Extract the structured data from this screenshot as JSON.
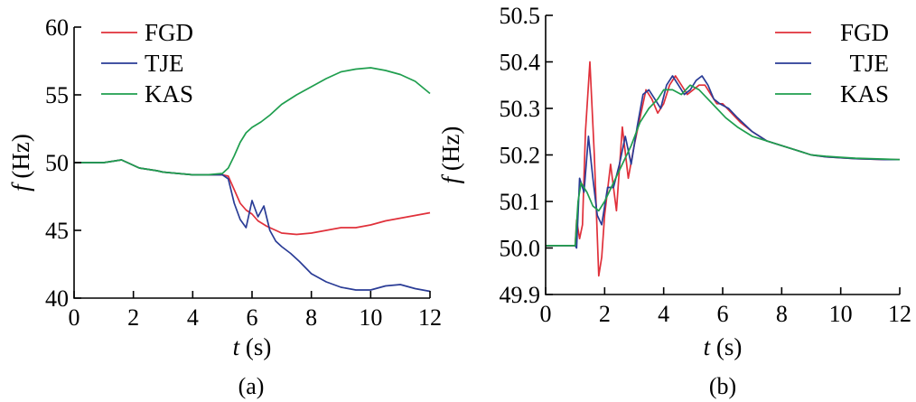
{
  "chart_data": [
    {
      "type": "line",
      "panel_label": "(a)",
      "xlabel_var": "t",
      "xlabel_unit": " (s)",
      "ylabel_var": "f",
      "ylabel_unit": " (Hz)",
      "xlim": [
        0,
        12
      ],
      "ylim": [
        40,
        60
      ],
      "xticks": [
        0,
        2,
        4,
        6,
        8,
        10,
        12
      ],
      "xtick_labels": [
        "0",
        "2",
        "4",
        "6",
        "8",
        "10",
        "12"
      ],
      "yticks": [
        40,
        45,
        50,
        55,
        60
      ],
      "ytick_labels": [
        "40",
        "45",
        "50",
        "55",
        "60"
      ],
      "legend_position": "top-left",
      "grid": false,
      "series": [
        {
          "name": "FGD",
          "color": "#e0303a",
          "x": [
            0,
            1,
            1.3,
            1.6,
            1.9,
            2.2,
            2.5,
            2.8,
            3.0,
            3.5,
            4.0,
            4.5,
            5.0,
            5.2,
            5.4,
            5.6,
            5.8,
            6.0,
            6.2,
            6.5,
            6.8,
            7.0,
            7.5,
            8.0,
            8.5,
            9.0,
            9.5,
            10.0,
            10.5,
            11.0,
            11.5,
            12.0
          ],
          "y": [
            50.0,
            50.0,
            50.1,
            50.2,
            49.9,
            49.6,
            49.5,
            49.4,
            49.3,
            49.2,
            49.1,
            49.1,
            49.1,
            49.0,
            48.0,
            47.0,
            46.5,
            46.2,
            45.7,
            45.3,
            45.0,
            44.8,
            44.7,
            44.8,
            45.0,
            45.2,
            45.2,
            45.4,
            45.7,
            45.9,
            46.1,
            46.3
          ]
        },
        {
          "name": "TJE",
          "color": "#2a3c96",
          "x": [
            0,
            1,
            1.3,
            1.6,
            1.9,
            2.2,
            2.5,
            2.8,
            3.0,
            3.5,
            4.0,
            4.5,
            5.0,
            5.2,
            5.4,
            5.6,
            5.8,
            6.0,
            6.2,
            6.4,
            6.6,
            6.8,
            7.0,
            7.3,
            7.6,
            8.0,
            8.5,
            9.0,
            9.5,
            10.0,
            10.5,
            11.0,
            11.5,
            12.0
          ],
          "y": [
            50.0,
            50.0,
            50.1,
            50.2,
            49.9,
            49.6,
            49.5,
            49.4,
            49.3,
            49.2,
            49.1,
            49.1,
            49.1,
            48.8,
            47.0,
            45.8,
            45.2,
            47.2,
            46.0,
            46.8,
            45.0,
            44.2,
            43.8,
            43.3,
            42.7,
            41.8,
            41.2,
            40.8,
            40.6,
            40.6,
            40.9,
            41.0,
            40.7,
            40.5
          ]
        },
        {
          "name": "KAS",
          "color": "#1f9e4e",
          "x": [
            0,
            1,
            1.3,
            1.6,
            1.9,
            2.2,
            2.5,
            2.8,
            3.0,
            3.5,
            4.0,
            4.5,
            5.0,
            5.2,
            5.4,
            5.6,
            5.8,
            6.0,
            6.3,
            6.6,
            7.0,
            7.5,
            8.0,
            8.5,
            9.0,
            9.5,
            10.0,
            10.5,
            11.0,
            11.5,
            12.0
          ],
          "y": [
            50.0,
            50.0,
            50.1,
            50.2,
            49.9,
            49.6,
            49.5,
            49.4,
            49.3,
            49.2,
            49.1,
            49.1,
            49.2,
            49.6,
            50.5,
            51.5,
            52.2,
            52.6,
            53.0,
            53.5,
            54.3,
            55.0,
            55.6,
            56.2,
            56.7,
            56.9,
            57.0,
            56.8,
            56.5,
            56.0,
            55.1
          ]
        }
      ]
    },
    {
      "type": "line",
      "panel_label": "(b)",
      "xlabel_var": "t",
      "xlabel_unit": " (s)",
      "ylabel_var": "f",
      "ylabel_unit": " (Hz)",
      "xlim": [
        0,
        12
      ],
      "ylim": [
        49.9,
        50.5
      ],
      "xticks": [
        0,
        2,
        4,
        6,
        8,
        10,
        12
      ],
      "xtick_labels": [
        "0",
        "2",
        "4",
        "6",
        "8",
        "10",
        "12"
      ],
      "yticks": [
        49.9,
        50.0,
        50.1,
        50.2,
        50.3,
        50.4,
        50.5
      ],
      "ytick_labels": [
        "49.9",
        "50.0",
        "50.1",
        "50.2",
        "50.3",
        "50.4",
        "50.5"
      ],
      "legend_position": "top-right",
      "grid": false,
      "series": [
        {
          "name": "FGD",
          "color": "#e0303a",
          "x": [
            0,
            0.9,
            1.0,
            1.05,
            1.15,
            1.25,
            1.35,
            1.5,
            1.65,
            1.8,
            1.9,
            2.0,
            2.2,
            2.4,
            2.6,
            2.8,
            3.0,
            3.2,
            3.4,
            3.6,
            3.8,
            4.0,
            4.2,
            4.4,
            4.6,
            4.8,
            5.0,
            5.2,
            5.4,
            5.6,
            5.8,
            6.0,
            6.3,
            6.6,
            7.0,
            7.5,
            8.0,
            8.5,
            9.0,
            9.5,
            10.0,
            10.5,
            11.0,
            11.5,
            12.0
          ],
          "y": [
            50.005,
            50.005,
            50.005,
            50.06,
            50.02,
            50.05,
            50.25,
            50.4,
            50.2,
            49.94,
            49.98,
            50.07,
            50.18,
            50.08,
            50.26,
            50.15,
            50.22,
            50.28,
            50.34,
            50.32,
            50.29,
            50.31,
            50.35,
            50.37,
            50.35,
            50.33,
            50.34,
            50.35,
            50.35,
            50.33,
            50.31,
            50.31,
            50.29,
            50.27,
            50.25,
            50.23,
            50.22,
            50.21,
            50.2,
            50.196,
            50.194,
            50.192,
            50.191,
            50.19,
            50.19
          ]
        },
        {
          "name": "TJE",
          "color": "#2a3c96",
          "x": [
            0,
            0.9,
            1.0,
            1.05,
            1.15,
            1.3,
            1.45,
            1.6,
            1.75,
            1.9,
            2.1,
            2.3,
            2.5,
            2.7,
            2.9,
            3.1,
            3.3,
            3.5,
            3.7,
            3.9,
            4.1,
            4.3,
            4.5,
            4.7,
            4.9,
            5.1,
            5.3,
            5.5,
            5.7,
            5.9,
            6.2,
            6.5,
            7.0,
            7.5,
            8.0,
            8.5,
            9.0,
            9.5,
            10.0,
            10.5,
            11.0,
            11.5,
            12.0
          ],
          "y": [
            50.005,
            50.005,
            50.005,
            50.0,
            50.15,
            50.12,
            50.24,
            50.15,
            50.07,
            50.05,
            50.13,
            50.13,
            50.18,
            50.24,
            50.18,
            50.26,
            50.33,
            50.34,
            50.32,
            50.3,
            50.35,
            50.37,
            50.35,
            50.33,
            50.34,
            50.36,
            50.37,
            50.35,
            50.32,
            50.31,
            50.3,
            50.28,
            50.25,
            50.23,
            50.22,
            50.21,
            50.2,
            50.196,
            50.194,
            50.192,
            50.191,
            50.19,
            50.19
          ]
        },
        {
          "name": "KAS",
          "color": "#1f9e4e",
          "x": [
            0,
            0.9,
            1.0,
            1.1,
            1.2,
            1.4,
            1.6,
            1.8,
            2.0,
            2.3,
            2.6,
            2.9,
            3.2,
            3.5,
            3.8,
            4.0,
            4.3,
            4.6,
            4.9,
            5.2,
            5.5,
            5.8,
            6.1,
            6.5,
            7.0,
            7.5,
            8.0,
            8.5,
            9.0,
            9.5,
            10.0,
            10.5,
            11.0,
            11.5,
            12.0
          ],
          "y": [
            50.005,
            50.005,
            50.005,
            50.1,
            50.14,
            50.12,
            50.09,
            50.08,
            50.1,
            50.14,
            50.18,
            50.22,
            50.27,
            50.3,
            50.32,
            50.34,
            50.34,
            50.33,
            50.35,
            50.34,
            50.32,
            50.3,
            50.28,
            50.26,
            50.24,
            50.23,
            50.22,
            50.21,
            50.2,
            50.197,
            50.195,
            50.193,
            50.192,
            50.191,
            50.19
          ]
        }
      ]
    }
  ]
}
